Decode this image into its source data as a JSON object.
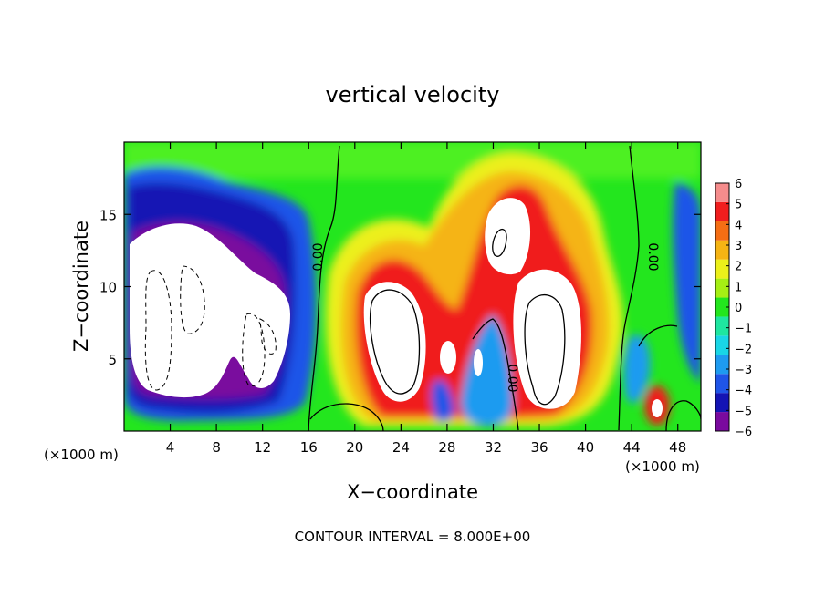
{
  "chart_data": {
    "type": "heatmap",
    "title": "vertical velocity",
    "xlabel": "X−coordinate",
    "ylabel": "Z−coordinate",
    "x_unit_left": "(×1000 m)",
    "x_unit_right": "(×1000 m)",
    "footer": "CONTOUR INTERVAL = 8.000E+00",
    "xlim": [
      0,
      50
    ],
    "ylim": [
      0,
      20
    ],
    "xticks": [
      4,
      8,
      12,
      16,
      20,
      24,
      28,
      32,
      36,
      40,
      44,
      48
    ],
    "xtick_labels": [
      "4",
      "8",
      "12",
      "16",
      "20",
      "24",
      "28",
      "32",
      "36",
      "40",
      "44",
      "48"
    ],
    "yticks": [
      5,
      10,
      15
    ],
    "ytick_labels": [
      "5",
      "10",
      "15"
    ],
    "colorbar": {
      "min": -6,
      "max": 6,
      "tick_values": [
        6,
        5,
        4,
        3,
        2,
        1,
        0,
        -1,
        -2,
        -3,
        -4,
        -5,
        -6
      ],
      "tick_labels": [
        "6",
        "5",
        "4",
        "3",
        "2",
        "1",
        "0",
        "−1",
        "−2",
        "−3",
        "−4",
        "−5",
        "−6"
      ],
      "colors": [
        "#7a0a9e",
        "#1414b4",
        "#1f55e8",
        "#1e9bf0",
        "#19d6e6",
        "#1ee6a0",
        "#23e61e",
        "#a5ef14",
        "#ecf01a",
        "#f5b414",
        "#f56e14",
        "#f01e1e",
        "#f58c8c"
      ]
    },
    "contour_labels": [
      "0.00",
      "0.00",
      "0.00"
    ],
    "features": [
      {
        "kind": "updraft",
        "x": 25,
        "z": 7.5,
        "w_min": 6
      },
      {
        "kind": "updraft",
        "x": 36.5,
        "z": 8.5,
        "w_min": 6
      },
      {
        "kind": "updraft",
        "x": 33,
        "z": 13.5,
        "w_min": 6
      },
      {
        "kind": "updraft",
        "x": 28.5,
        "z": 5,
        "w_min": 6
      },
      {
        "kind": "downdraft",
        "x": 5.5,
        "z": 8,
        "w_max": -6
      },
      {
        "kind": "downdraft",
        "x": 10.5,
        "z": 6.5,
        "w_max": -6
      },
      {
        "kind": "downdraft",
        "x": 30.5,
        "z": 3.5,
        "w_max": -6
      },
      {
        "kind": "downdraft",
        "x": 49.5,
        "z": 7,
        "w_max": -5
      }
    ]
  }
}
